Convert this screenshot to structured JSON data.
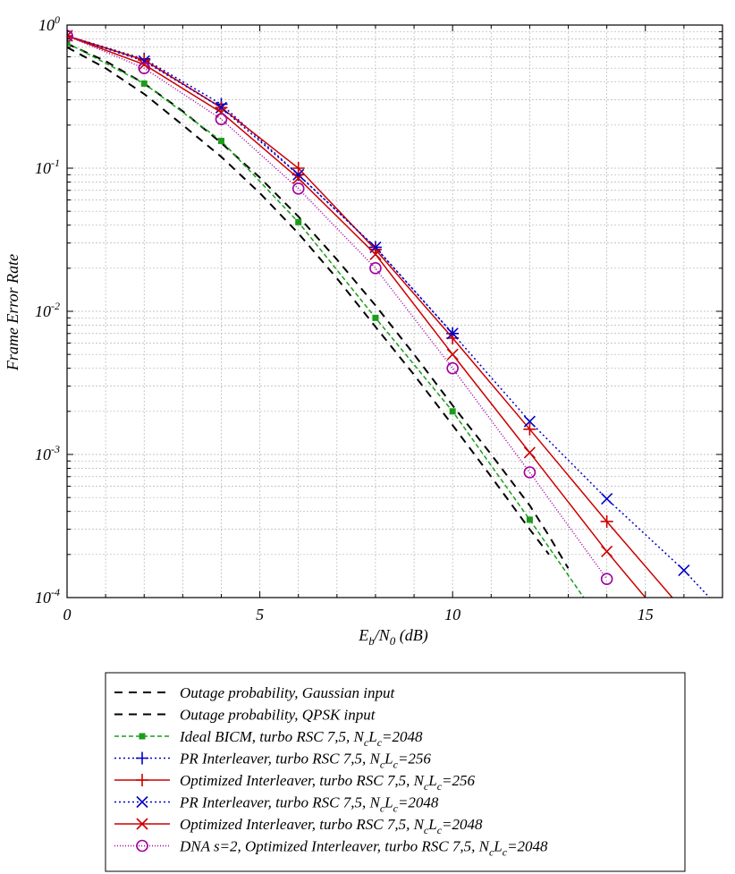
{
  "chart_data": {
    "type": "line",
    "xlabel": "E_b/N_0 (dB)",
    "ylabel": "Frame Error Rate",
    "xscale": "linear",
    "yscale": "log",
    "xlim": [
      0,
      17
    ],
    "ylim": [
      0.0001,
      1
    ],
    "grid": true,
    "legend_position": "below plot",
    "x_ticks": [
      {
        "value": 0,
        "label": "0"
      },
      {
        "value": 5,
        "label": "5"
      },
      {
        "value": 10,
        "label": "10"
      },
      {
        "value": 15,
        "label": "15"
      }
    ],
    "y_ticks": [
      {
        "value": 1,
        "base": "10",
        "exp": "0"
      },
      {
        "value": 0.1,
        "base": "10",
        "exp": "-1"
      },
      {
        "value": 0.01,
        "base": "10",
        "exp": "-2"
      },
      {
        "value": 0.001,
        "base": "10",
        "exp": "-3"
      },
      {
        "value": 0.0001,
        "base": "10",
        "exp": "-4"
      }
    ],
    "series": [
      {
        "name": "Outage probability, Gaussian input",
        "legend": [
          {
            "t": "Outage probability, Gaussian input"
          }
        ],
        "color": "#000000",
        "dash": "9,7",
        "width": 2,
        "marker": "none",
        "x": [
          0,
          1,
          2,
          3,
          4,
          5,
          6,
          7,
          8,
          9,
          10,
          11,
          12,
          12.5
        ],
        "y": [
          0.7,
          0.5,
          0.33,
          0.2,
          0.12,
          0.067,
          0.035,
          0.017,
          0.0078,
          0.0036,
          0.0016,
          0.0007,
          0.0003,
          0.0002
        ]
      },
      {
        "name": "Outage probability, QPSK input",
        "legend": [
          {
            "t": "Outage probability, QPSK input"
          }
        ],
        "color": "#000000",
        "dash": "9,7",
        "width": 2,
        "marker": "none",
        "x": [
          0,
          1,
          2,
          3,
          4,
          5,
          6,
          7,
          8,
          9,
          10,
          11,
          12,
          12.5,
          13
        ],
        "y": [
          0.74,
          0.56,
          0.39,
          0.25,
          0.15,
          0.086,
          0.046,
          0.023,
          0.011,
          0.005,
          0.0022,
          0.001,
          0.00044,
          0.00027,
          0.00016
        ]
      },
      {
        "name": "Ideal BICM, turbo RSC 7,5, NcLc=2048",
        "legend": [
          {
            "t": "Ideal BICM, turbo RSC 7,5, N"
          },
          {
            "t": "c",
            "sub": true
          },
          {
            "t": "L"
          },
          {
            "t": "c",
            "sub": true
          },
          {
            "t": "=2048"
          }
        ],
        "color": "#1a9e1a",
        "dash": "5,3",
        "width": 1.5,
        "marker": "square",
        "x": [
          0,
          2,
          4,
          6,
          8,
          10,
          12,
          13.4
        ],
        "y": [
          0.75,
          0.39,
          0.155,
          0.042,
          0.009,
          0.002,
          0.00035,
          0.0001
        ]
      },
      {
        "name": "PR Interleaver, turbo RSC 7,5, NcLc=256",
        "legend": [
          {
            "t": "PR Interleaver, turbo RSC 7,5, N"
          },
          {
            "t": "c",
            "sub": true
          },
          {
            "t": "L"
          },
          {
            "t": "c",
            "sub": true
          },
          {
            "t": "=256"
          }
        ],
        "color": "#0000c8",
        "dash": "2,3",
        "width": 1.5,
        "marker": "plus",
        "x": [
          0,
          2,
          4,
          6,
          8,
          10
        ],
        "y": [
          0.84,
          0.58,
          0.28,
          0.09,
          0.028,
          0.007
        ]
      },
      {
        "name": "Optimized Interleaver, turbo RSC 7,5, NcLc=256",
        "legend": [
          {
            "t": "Optimized Interleaver, turbo RSC 7,5, N"
          },
          {
            "t": "c",
            "sub": true
          },
          {
            "t": "L"
          },
          {
            "t": "c",
            "sub": true
          },
          {
            "t": "=256"
          }
        ],
        "color": "#cc0000",
        "dash": "",
        "width": 1.5,
        "marker": "plus",
        "x": [
          0,
          2,
          4,
          6,
          8,
          10,
          12,
          14,
          15.7
        ],
        "y": [
          0.84,
          0.57,
          0.265,
          0.1,
          0.027,
          0.0065,
          0.0015,
          0.00034,
          0.0001
        ]
      },
      {
        "name": "PR Interleaver, turbo RSC 7,5, NcLc=2048",
        "legend": [
          {
            "t": "PR Interleaver, turbo RSC 7,5, N"
          },
          {
            "t": "c",
            "sub": true
          },
          {
            "t": "L"
          },
          {
            "t": "c",
            "sub": true
          },
          {
            "t": "=2048"
          }
        ],
        "color": "#0000c8",
        "dash": "2,3",
        "width": 1.5,
        "marker": "x",
        "x": [
          0,
          2,
          4,
          6,
          8,
          10,
          12,
          14,
          16,
          17
        ],
        "y": [
          0.84,
          0.56,
          0.265,
          0.09,
          0.028,
          0.007,
          0.0017,
          0.00049,
          0.000155,
          8e-05
        ]
      },
      {
        "name": "Optimized Interleaver, turbo RSC 7,5, NcLc=2048",
        "legend": [
          {
            "t": "Optimized Interleaver, turbo RSC 7,5, N"
          },
          {
            "t": "c",
            "sub": true
          },
          {
            "t": "L"
          },
          {
            "t": "c",
            "sub": true
          },
          {
            "t": "=2048"
          }
        ],
        "color": "#cc0000",
        "dash": "",
        "width": 1.5,
        "marker": "x",
        "x": [
          0,
          2,
          4,
          6,
          8,
          10,
          12,
          14,
          15
        ],
        "y": [
          0.84,
          0.53,
          0.245,
          0.085,
          0.025,
          0.005,
          0.00103,
          0.00021,
          0.0001
        ]
      },
      {
        "name": "DNA s=2, Optimized Interleaver, turbo RSC 7,5, NcLc=2048",
        "legend": [
          {
            "t": "DNA s=2, Optimized Interleaver, turbo RSC 7,5, N"
          },
          {
            "t": "c",
            "sub": true
          },
          {
            "t": "L"
          },
          {
            "t": "c",
            "sub": true
          },
          {
            "t": "=2048"
          }
        ],
        "color": "#a000a0",
        "dash": "1,2",
        "width": 1.5,
        "marker": "circle",
        "x": [
          0,
          2,
          4,
          6,
          8,
          10,
          12,
          14
        ],
        "y": [
          0.84,
          0.5,
          0.22,
          0.072,
          0.02,
          0.004,
          0.00075,
          0.000135
        ]
      }
    ]
  }
}
